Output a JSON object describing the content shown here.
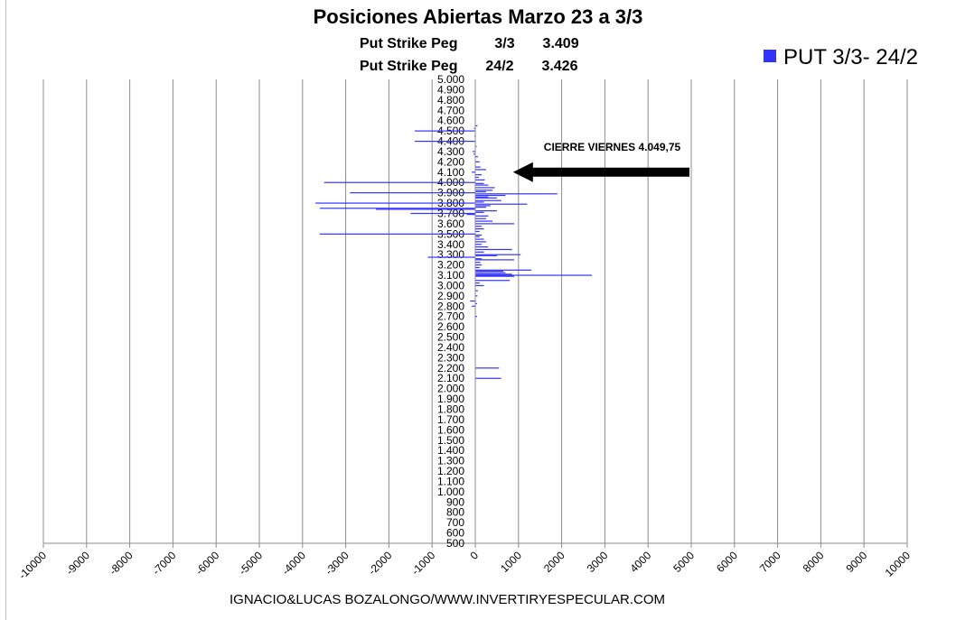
{
  "chart_data": {
    "type": "bar",
    "orientation": "horizontal",
    "title": "Posiciones Abiertas Marzo 23 a 3/3",
    "subtitle_lines": [
      {
        "label": "Put Strike Peg",
        "date": "3/3",
        "value": "3.409"
      },
      {
        "label": "Put Strike Peg",
        "date": "24/2",
        "value": "3.426"
      }
    ],
    "legend": {
      "position": "top-right",
      "entries": [
        "PUT 3/3- 24/2"
      ]
    },
    "xlim": [
      -10000,
      10000
    ],
    "x_ticks": [
      "-10000",
      "-9000",
      "-8000",
      "-7000",
      "-6000",
      "-5000",
      "-4000",
      "-3000",
      "-2000",
      "-1000",
      "0",
      "1000",
      "2000",
      "3000",
      "4000",
      "5000",
      "6000",
      "7000",
      "8000",
      "9000",
      "10000"
    ],
    "ylim": [
      500,
      5000
    ],
    "y_ticks": [
      "5.000",
      "4.900",
      "4.800",
      "4.700",
      "4.600",
      "4.500",
      "4.400",
      "4.300",
      "4.200",
      "4.100",
      "4.000",
      "3.900",
      "3.800",
      "3.700",
      "3.600",
      "3.500",
      "3.400",
      "3.300",
      "3.200",
      "3.100",
      "3.000",
      "2.900",
      "2.800",
      "2.700",
      "2.600",
      "2.500",
      "2.400",
      "2.300",
      "2.200",
      "2.100",
      "2.000",
      "1.900",
      "1.800",
      "1.700",
      "1.600",
      "1.500",
      "1.400",
      "1.300",
      "1.200",
      "1.100",
      "1.000",
      "900",
      "800",
      "700",
      "600",
      "500"
    ],
    "grid": "vertical",
    "series": [
      {
        "name": "PUT 3/3- 24/2",
        "color": "#3333ff",
        "points": [
          {
            "strike": 4550,
            "value": 50
          },
          {
            "strike": 4525,
            "value": -30
          },
          {
            "strike": 4500,
            "value": -1400
          },
          {
            "strike": 4450,
            "value": -20
          },
          {
            "strike": 4400,
            "value": -1400
          },
          {
            "strike": 4350,
            "value": 30
          },
          {
            "strike": 4300,
            "value": -60
          },
          {
            "strike": 4275,
            "value": -40
          },
          {
            "strike": 4250,
            "value": 60
          },
          {
            "strike": 4200,
            "value": 100
          },
          {
            "strike": 4150,
            "value": 120
          },
          {
            "strike": 4125,
            "value": 250
          },
          {
            "strike": 4100,
            "value": -80
          },
          {
            "strike": 4075,
            "value": 150
          },
          {
            "strike": 4050,
            "value": 80
          },
          {
            "strike": 4025,
            "value": 220
          },
          {
            "strike": 4000,
            "value": -3500
          },
          {
            "strike": 3990,
            "value": 200
          },
          {
            "strike": 3975,
            "value": 300
          },
          {
            "strike": 3950,
            "value": 450
          },
          {
            "strike": 3925,
            "value": 400
          },
          {
            "strike": 3910,
            "value": 250
          },
          {
            "strike": 3900,
            "value": -2900
          },
          {
            "strike": 3890,
            "value": 1900
          },
          {
            "strike": 3875,
            "value": 700
          },
          {
            "strike": 3860,
            "value": 300
          },
          {
            "strike": 3850,
            "value": 500
          },
          {
            "strike": 3825,
            "value": 600
          },
          {
            "strike": 3810,
            "value": 200
          },
          {
            "strike": 3800,
            "value": -3700
          },
          {
            "strike": 3790,
            "value": 1200
          },
          {
            "strike": 3775,
            "value": 350
          },
          {
            "strike": 3760,
            "value": 250
          },
          {
            "strike": 3750,
            "value": -3600
          },
          {
            "strike": 3740,
            "value": -2300
          },
          {
            "strike": 3725,
            "value": 500
          },
          {
            "strike": 3710,
            "value": 200
          },
          {
            "strike": 3700,
            "value": -1500
          },
          {
            "strike": 3690,
            "value": -200
          },
          {
            "strike": 3675,
            "value": 300
          },
          {
            "strike": 3650,
            "value": 250
          },
          {
            "strike": 3625,
            "value": 400
          },
          {
            "strike": 3600,
            "value": 900
          },
          {
            "strike": 3575,
            "value": 150
          },
          {
            "strike": 3550,
            "value": 200
          },
          {
            "strike": 3525,
            "value": 100
          },
          {
            "strike": 3500,
            "value": -3600
          },
          {
            "strike": 3490,
            "value": 150
          },
          {
            "strike": 3475,
            "value": 100
          },
          {
            "strike": 3450,
            "value": 200
          },
          {
            "strike": 3425,
            "value": 250
          },
          {
            "strike": 3400,
            "value": 150
          },
          {
            "strike": 3375,
            "value": 300
          },
          {
            "strike": 3350,
            "value": 850
          },
          {
            "strike": 3325,
            "value": 200
          },
          {
            "strike": 3300,
            "value": 1050
          },
          {
            "strike": 3290,
            "value": 500
          },
          {
            "strike": 3275,
            "value": -1100
          },
          {
            "strike": 3260,
            "value": 150
          },
          {
            "strike": 3250,
            "value": 900
          },
          {
            "strike": 3225,
            "value": 120
          },
          {
            "strike": 3200,
            "value": 150
          },
          {
            "strike": 3175,
            "value": 100
          },
          {
            "strike": 3150,
            "value": 1300
          },
          {
            "strike": 3140,
            "value": 650
          },
          {
            "strike": 3125,
            "value": 700
          },
          {
            "strike": 3110,
            "value": 850
          },
          {
            "strike": 3100,
            "value": 2700
          },
          {
            "strike": 3090,
            "value": 900
          },
          {
            "strike": 3050,
            "value": 800
          },
          {
            "strike": 3025,
            "value": 100
          },
          {
            "strike": 3000,
            "value": 200
          },
          {
            "strike": 2950,
            "value": 60
          },
          {
            "strike": 2900,
            "value": 50
          },
          {
            "strike": 2850,
            "value": -120
          },
          {
            "strike": 2825,
            "value": 40
          },
          {
            "strike": 2800,
            "value": -80
          },
          {
            "strike": 2700,
            "value": 40
          },
          {
            "strike": 2200,
            "value": 550
          },
          {
            "strike": 2100,
            "value": 600
          }
        ]
      }
    ],
    "annotations": [
      {
        "text": "CIERRE VIERNES 4.049,75",
        "strike": 4100,
        "arrow_from_value": 5000,
        "arrow_to_value": 1000
      }
    ]
  },
  "footer": "IGNACIO&LUCAS BOZALONGO/WWW.INVERTIRYESPECULAR.COM"
}
